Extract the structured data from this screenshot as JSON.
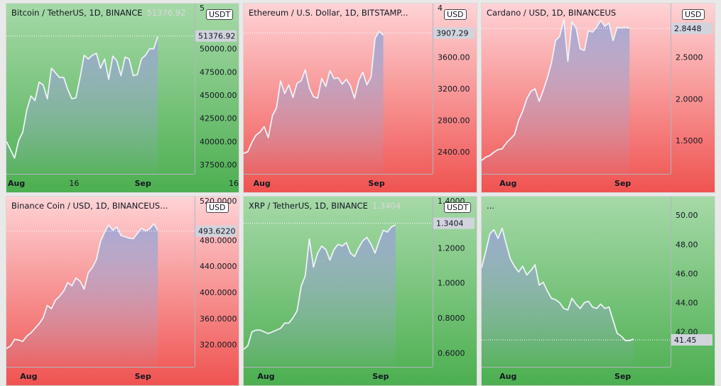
{
  "chart_data": [
    {
      "type": "area",
      "title": "Bitcoin / TetherUS, 1D, BINANCE",
      "last_value_label": "51376.92",
      "currency": "USDT",
      "background": "green",
      "ylim": [
        36500,
        53500
      ],
      "y_ticks": [
        37500,
        40000,
        42500,
        45000,
        47500,
        50000
      ],
      "y_tick_labels": [
        "37500.00",
        "40000.00",
        "42500.00",
        "45000.00",
        "47500.00",
        "50000.00"
      ],
      "y_top_partial": "5",
      "x_ticks": [
        {
          "i": 0,
          "label": "Aug",
          "bold": true
        },
        {
          "i": 15,
          "label": "16",
          "bold": false
        },
        {
          "i": 31,
          "label": "Sep",
          "bold": true
        }
      ],
      "x_extra_label": "16",
      "n_slots": 46,
      "x": [
        0,
        1,
        2,
        3,
        4,
        5,
        6,
        7,
        8,
        9,
        10,
        11,
        12,
        13,
        14,
        15,
        16,
        17,
        18,
        19,
        20,
        21,
        22,
        23,
        24,
        25,
        26,
        27,
        28,
        29,
        30,
        31,
        32,
        33,
        34,
        35,
        36,
        37
      ],
      "values": [
        40000,
        39100,
        38200,
        40100,
        41000,
        43400,
        44900,
        44400,
        46400,
        46100,
        44600,
        47900,
        47400,
        46900,
        46900,
        45600,
        44600,
        44700,
        46900,
        49300,
        48900,
        49300,
        49500,
        47900,
        48900,
        46700,
        49200,
        48700,
        47100,
        49100,
        48900,
        47100,
        47200,
        48900,
        49300,
        50000,
        50000,
        51300
      ],
      "current": 51376.92,
      "current_label": "51376.92"
    },
    {
      "type": "area",
      "title": "Ethereum / U.S. Dollar, 1D, BITSTAMP...",
      "last_value_label": "",
      "currency": "USD",
      "background": "red",
      "ylim": [
        2120,
        4120
      ],
      "y_ticks": [
        2400,
        2800,
        3200,
        3600
      ],
      "y_tick_labels": [
        "2400.00",
        "2800.00",
        "3200.00",
        "3600.00"
      ],
      "y_top_partial": "4",
      "x_ticks": [
        {
          "i": 2,
          "label": "Aug",
          "bold": true
        },
        {
          "i": 30,
          "label": "Sep",
          "bold": true
        }
      ],
      "n_slots": 46,
      "x": [
        0,
        1,
        2,
        3,
        4,
        5,
        6,
        7,
        8,
        9,
        10,
        11,
        12,
        13,
        14,
        15,
        16,
        17,
        18,
        19,
        20,
        21,
        22,
        23,
        24,
        25,
        26,
        27,
        28,
        29,
        30,
        31,
        32,
        33,
        34
      ],
      "values": [
        2380,
        2400,
        2520,
        2610,
        2650,
        2720,
        2580,
        2860,
        2960,
        3300,
        3140,
        3250,
        3090,
        3270,
        3300,
        3440,
        3210,
        3100,
        3080,
        3330,
        3230,
        3430,
        3330,
        3340,
        3260,
        3320,
        3240,
        3080,
        3300,
        3410,
        3250,
        3350,
        3840,
        3930,
        3880
      ],
      "current": 3907.29,
      "current_label": "3907.29"
    },
    {
      "type": "area",
      "title": "Cardano / USD, 1D, BINANCEUS",
      "last_value_label": "...",
      "currency": "USD",
      "background": "red",
      "ylim": [
        1.1,
        2.99
      ],
      "y_ticks": [
        1.5,
        2.0,
        2.5
      ],
      "y_tick_labels": [
        "1.5000",
        "2.0000",
        "2.5000"
      ],
      "x_ticks": [
        {
          "i": 4,
          "label": "Aug",
          "bold": true
        },
        {
          "i": 32,
          "label": "Sep",
          "bold": true
        }
      ],
      "n_slots": 46,
      "x": [
        0,
        1,
        2,
        3,
        4,
        5,
        6,
        7,
        8,
        9,
        10,
        11,
        12,
        13,
        14,
        15,
        16,
        17,
        18,
        19,
        20,
        21,
        22,
        23,
        24,
        25,
        26,
        27,
        28,
        29,
        30,
        31,
        32,
        33,
        34,
        35,
        36
      ],
      "values": [
        1.26,
        1.3,
        1.32,
        1.36,
        1.39,
        1.4,
        1.47,
        1.52,
        1.57,
        1.74,
        1.85,
        2.0,
        2.09,
        2.12,
        1.97,
        2.1,
        2.25,
        2.43,
        2.7,
        2.75,
        2.95,
        2.45,
        2.92,
        2.85,
        2.6,
        2.58,
        2.82,
        2.8,
        2.86,
        2.94,
        2.87,
        2.91,
        2.7,
        2.86,
        2.85,
        2.86,
        2.85
      ],
      "current": 2.8448,
      "current_label": "2.8448"
    },
    {
      "type": "area",
      "title": "Binance Coin / USD, 1D, BINANCEUS...",
      "last_value_label": "",
      "currency": "USD",
      "background": "red",
      "ylim": [
        286,
        527
      ],
      "y_ticks": [
        320,
        360,
        400,
        440,
        480
      ],
      "y_tick_labels": [
        "320.0000",
        "360.0000",
        "400.0000",
        "440.0000",
        "480.0000"
      ],
      "y_top_partial": "520.0000",
      "x_ticks": [
        {
          "i": 3,
          "label": "Aug",
          "bold": true
        },
        {
          "i": 31,
          "label": "Sep",
          "bold": true
        }
      ],
      "n_slots": 46,
      "x": [
        0,
        1,
        2,
        3,
        4,
        5,
        6,
        7,
        8,
        9,
        10,
        11,
        12,
        13,
        14,
        15,
        16,
        17,
        18,
        19,
        20,
        21,
        22,
        23,
        24,
        25,
        26,
        27,
        28,
        29,
        30,
        31,
        32,
        33,
        34,
        35,
        36,
        37
      ],
      "values": [
        314,
        318,
        328,
        327,
        325,
        333,
        338,
        345,
        352,
        361,
        380,
        375,
        388,
        394,
        402,
        415,
        410,
        422,
        417,
        405,
        430,
        438,
        450,
        478,
        492,
        503,
        495,
        500,
        487,
        485,
        483,
        482,
        490,
        498,
        494,
        497,
        505,
        495
      ],
      "current": 493.622,
      "current_label": "493.6220"
    },
    {
      "type": "area",
      "title": "XRP / TetherUS, 1D, BINANCE",
      "last_value_label": "1.3404",
      "currency": "USDT",
      "background": "green",
      "ylim": [
        0.52,
        1.42
      ],
      "y_ticks": [
        0.6,
        0.8,
        1.0,
        1.2
      ],
      "y_tick_labels": [
        "0.6000",
        "0.8000",
        "1.0000",
        "1.2000"
      ],
      "y_top_partial": "1.4000",
      "x_ticks": [
        {
          "i": 3,
          "label": "Aug",
          "bold": true
        },
        {
          "i": 31,
          "label": "Sep",
          "bold": true
        }
      ],
      "n_slots": 46,
      "x": [
        0,
        1,
        2,
        3,
        4,
        5,
        6,
        7,
        8,
        9,
        10,
        11,
        12,
        13,
        14,
        15,
        16,
        17,
        18,
        19,
        20,
        21,
        22,
        23,
        24,
        25,
        26,
        27,
        28,
        29,
        30,
        31,
        32,
        33,
        34,
        35,
        36,
        37
      ],
      "values": [
        0.62,
        0.64,
        0.72,
        0.73,
        0.73,
        0.72,
        0.71,
        0.72,
        0.73,
        0.74,
        0.77,
        0.77,
        0.8,
        0.84,
        0.98,
        1.04,
        1.25,
        1.09,
        1.17,
        1.21,
        1.19,
        1.13,
        1.19,
        1.22,
        1.21,
        1.23,
        1.17,
        1.15,
        1.2,
        1.24,
        1.26,
        1.22,
        1.17,
        1.24,
        1.3,
        1.29,
        1.32,
        1.33
      ],
      "current": 1.3404,
      "current_label": "1.3404"
    },
    {
      "type": "area",
      "title": "...",
      "last_value_label": "",
      "currency": "",
      "background": "green",
      "ylim": [
        39.6,
        50.4
      ],
      "y_ticks": [
        42,
        44,
        46,
        48,
        50
      ],
      "y_tick_labels": [
        "42.00",
        "44.00",
        "46.00",
        "48.00",
        "50.00"
      ],
      "x_ticks": [
        {
          "i": 4,
          "label": "Aug",
          "bold": true
        },
        {
          "i": 32,
          "label": "Sep",
          "bold": true
        }
      ],
      "n_slots": 46,
      "x": [
        0,
        1,
        2,
        3,
        4,
        5,
        6,
        7,
        8,
        9,
        10,
        11,
        12,
        13,
        14,
        15,
        16,
        17,
        18,
        19,
        20,
        21,
        22,
        23,
        24,
        25,
        26,
        27,
        28,
        29,
        30,
        31,
        32,
        33,
        34,
        35,
        36,
        37
      ],
      "values": [
        46.4,
        47.5,
        48.7,
        49.0,
        48.4,
        49.1,
        48.0,
        47.0,
        46.5,
        46.1,
        46.5,
        45.9,
        46.2,
        46.6,
        45.2,
        45.4,
        44.8,
        44.3,
        44.2,
        44.0,
        43.6,
        43.5,
        44.3,
        43.9,
        43.6,
        44.0,
        44.1,
        43.7,
        43.6,
        43.9,
        43.6,
        43.7,
        42.8,
        41.9,
        41.7,
        41.4,
        41.4,
        41.5
      ],
      "current": 41.45,
      "current_label": "41.45"
    }
  ],
  "colors": {
    "green_top": "#a6d9a8",
    "green_bottom": "#4caf50",
    "red_top": "#ffd3d6",
    "red_bottom": "#ef5350",
    "line": "#eef2f7",
    "fill_top": "#9aa4d4",
    "current_label_bg": "#d1d4dc"
  }
}
